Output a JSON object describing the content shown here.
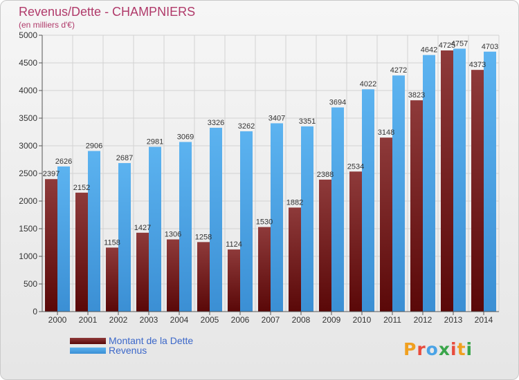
{
  "header": {
    "title": "Revenus/Dette - CHAMPNIERS",
    "subtitle": "(en milliers d'€)"
  },
  "chart_data": {
    "type": "bar",
    "title": "Revenus/Dette - CHAMPNIERS",
    "subtitle": "(en milliers d'€)",
    "categories": [
      "2000",
      "2001",
      "2002",
      "2003",
      "2004",
      "2005",
      "2006",
      "2007",
      "2008",
      "2009",
      "2010",
      "2011",
      "2012",
      "2013",
      "2014"
    ],
    "series": [
      {
        "name": "Montant de la Dette",
        "color": "#7a2020",
        "values": [
          2397,
          2152,
          1158,
          1427,
          1306,
          1258,
          1124,
          1530,
          1882,
          2388,
          2534,
          3148,
          3823,
          4725,
          4373
        ],
        "labels": [
          "2397",
          "2152",
          "1158",
          "1427",
          "1306",
          "1258",
          "1124",
          "1530",
          "1882",
          "2388",
          "2534",
          "3148",
          "3823",
          "4725",
          "4373"
        ]
      },
      {
        "name": "Revenus",
        "color": "#4aa3e6",
        "values": [
          2626,
          2906,
          2687,
          2981,
          3069,
          3326,
          3262,
          3407,
          3351,
          3694,
          4022,
          4272,
          4642,
          4757,
          4703
        ],
        "labels": [
          "2626",
          "2906",
          "2687",
          "2981",
          "3069",
          "3326",
          "3262",
          "3407",
          "3351",
          "3694",
          "4022",
          "4272",
          "4642",
          "4757",
          "4703"
        ]
      }
    ],
    "ylim": [
      0,
      5000
    ],
    "yticks": [
      0,
      500,
      1000,
      1500,
      2000,
      2500,
      3000,
      3500,
      4000,
      4500,
      5000
    ],
    "grid": true,
    "legend": "bottom-left"
  },
  "legend": {
    "items": [
      {
        "label": "Montant de la Dette",
        "color": "#7a2020"
      },
      {
        "label": "Revenus",
        "color": "#4aa3e6"
      }
    ]
  },
  "logo": {
    "letters": [
      "P",
      "r",
      "o",
      "x",
      "i",
      "t",
      "i"
    ],
    "colors": [
      "#f0a020",
      "#e84c3d",
      "#4aa3e6",
      "#3aa54a",
      "#e84c3d",
      "#f0a020",
      "#3aa54a"
    ]
  }
}
